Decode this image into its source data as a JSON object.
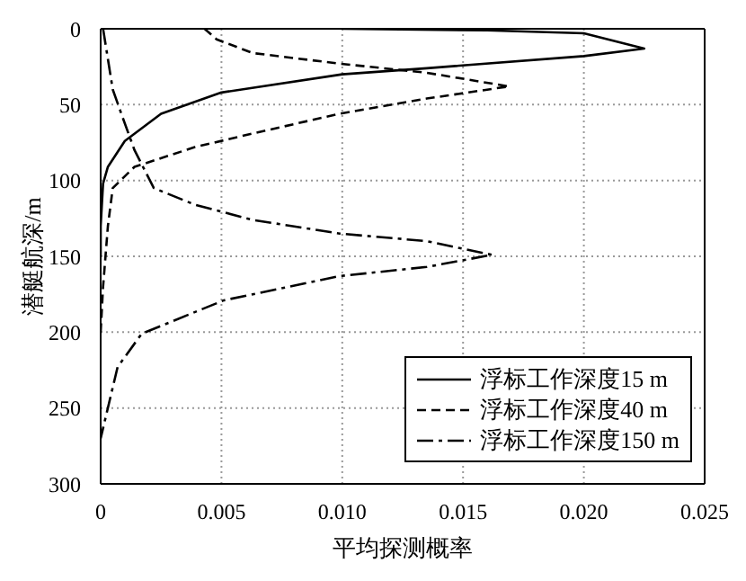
{
  "chart_data": {
    "type": "line",
    "xlabel": "平均探测概率",
    "ylabel": "潜艇航深/m",
    "xlim": [
      0,
      0.025
    ],
    "xticks": [
      0,
      0.005,
      {
        "value": 0.01,
        "label": "0.010"
      },
      0.015,
      {
        "value": 0.02,
        "label": "0.020"
      },
      0.025
    ],
    "ylim": [
      300,
      0
    ],
    "yticks": [
      0,
      50,
      100,
      150,
      200,
      250,
      300
    ],
    "grid": true,
    "legend": "bottom right",
    "marker": "none",
    "series": [
      {
        "name": "浮标工作深度15 m",
        "color": "#000000",
        "line_style": "solid",
        "x": [
          0.01,
          0.016,
          0.02,
          0.0225,
          0.02,
          0.0135,
          0.01,
          0.005,
          0.0025,
          0.001,
          0.0003,
          0.0001,
          0,
          0
        ],
        "values": [
          0,
          1,
          3,
          13,
          18,
          26,
          30,
          42,
          56,
          74,
          91,
          102,
          130,
          150
        ]
      },
      {
        "name": "浮标工作深度40 m",
        "color": "#000000",
        "line_style": "dashed",
        "x": [
          0.0043,
          0.0048,
          0.0063,
          0.0099,
          0.0135,
          0.0169,
          0.0135,
          0.0099,
          0.0063,
          0.0039,
          0.0014,
          0.0005,
          0.0003,
          0.0001,
          0
        ],
        "values": [
          0,
          7,
          16,
          23,
          29,
          38,
          46,
          56,
          69,
          78,
          91,
          105,
          130,
          170,
          200
        ]
      },
      {
        "name": "浮标工作深度150 m",
        "color": "#000000",
        "line_style": "dashdot",
        "x": [
          0.0001,
          0.0005,
          0.0009,
          0.0014,
          0.0022,
          0.0039,
          0.0063,
          0.0099,
          0.0135,
          0.0162,
          0.0135,
          0.0099,
          0.0051,
          0.0017,
          0.0007,
          0
        ],
        "values": [
          0,
          40,
          58,
          80,
          105,
          116,
          126,
          135,
          140,
          149,
          157,
          163,
          179,
          201,
          223,
          270
        ]
      }
    ]
  }
}
